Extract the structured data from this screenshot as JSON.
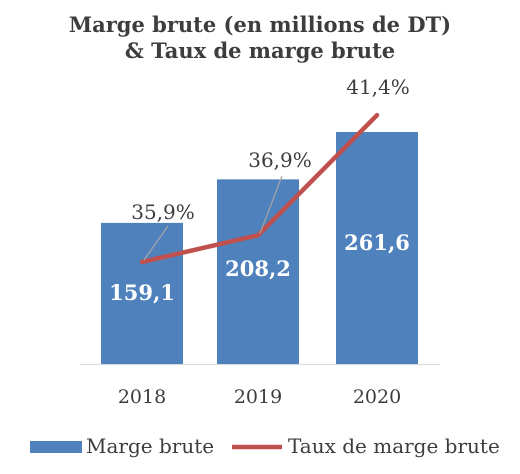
{
  "chart_data": {
    "type": "bar",
    "title": [
      "Marge brute (en millions de DT)",
      "& Taux de marge brute"
    ],
    "categories": [
      "2018",
      "2019",
      "2020"
    ],
    "series": [
      {
        "name": "Marge brute",
        "type": "bar",
        "values": [
          159.1,
          208.2,
          261.6
        ],
        "labels": [
          "159,1",
          "208,2",
          "261,6"
        ],
        "color": "#4f81bd"
      },
      {
        "name": "Taux de marge brute",
        "type": "line",
        "values": [
          35.9,
          36.9,
          41.4
        ],
        "labels": [
          "35,9%",
          "36,9%",
          "41,4%"
        ],
        "color": "#c0504d"
      }
    ],
    "legend": "bottom",
    "grid": false
  }
}
